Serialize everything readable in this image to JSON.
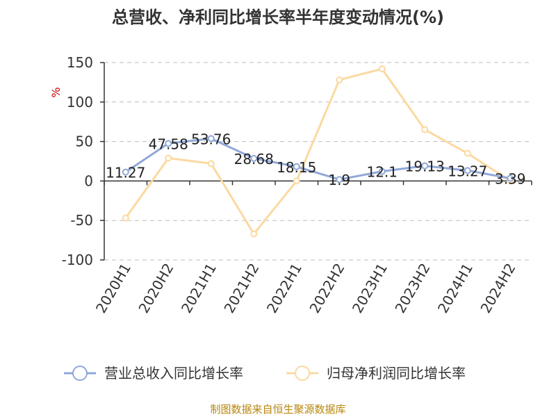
{
  "chart_data": {
    "type": "line",
    "title": "总营收、净利同比增长率半年度变动情况(%)",
    "ylabel": "%",
    "xlabel": "",
    "ylim": [
      -100,
      150
    ],
    "yticks": [
      "150",
      "100",
      "50",
      "0",
      "-50",
      "-100"
    ],
    "ytick_values": [
      150,
      100,
      50,
      0,
      -50,
      -100
    ],
    "grid": true,
    "legend_position": "bottom",
    "categories": [
      "2020H1",
      "2020H2",
      "2021H1",
      "2021H2",
      "2022H1",
      "2022H2",
      "2023H1",
      "2023H2",
      "2024H1",
      "2024H2"
    ],
    "series": [
      {
        "name": "营业总收入同比增长率",
        "color": "#8fa8d8",
        "values": [
          11.27,
          47.58,
          53.76,
          28.68,
          18.15,
          1.9,
          12.1,
          19.13,
          13.27,
          3.39
        ],
        "labels": [
          "11.27",
          "47.58",
          "53.76",
          "28.68",
          "18.15",
          "1.9",
          "12.1",
          "19.13",
          "13.27",
          "3.39"
        ]
      },
      {
        "name": "归母净利润同比增长率",
        "color": "#fbd9a0",
        "values": [
          -47,
          29,
          22,
          -67,
          0,
          128,
          142,
          65,
          35,
          0
        ]
      }
    ],
    "source": "制图数据来自恒生聚源数据库"
  }
}
